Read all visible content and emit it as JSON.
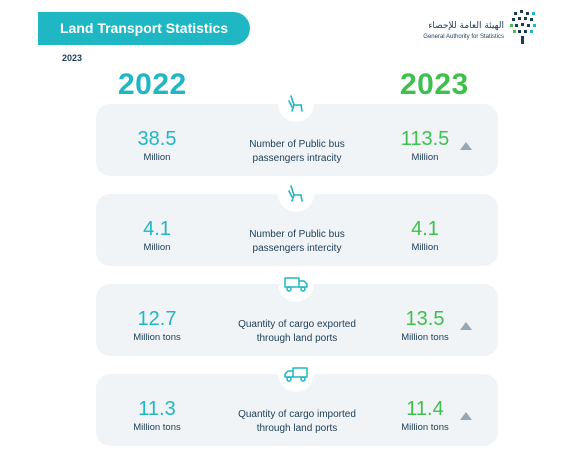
{
  "header": {
    "title": "Land Transport Statistics",
    "year": "2023",
    "logo_arabic": "الهيئة العامة للإحصاء",
    "logo_english": "General Authority for Statistics"
  },
  "columns": {
    "left_year": "2022",
    "right_year": "2023"
  },
  "colors": {
    "teal": "#1fb7c4",
    "green": "#3fbf4d",
    "navy": "#1a3d57",
    "card_bg": "#f1f4f6"
  },
  "cards": [
    {
      "icon": "bus-seat-icon",
      "label_line1": "Number of Public bus",
      "label_line2": "passengers intracity",
      "value_2022": "38.5",
      "unit_2022": "Million",
      "value_2023": "113.5",
      "unit_2023": "Million",
      "trend": "up"
    },
    {
      "icon": "bus-seat-icon",
      "label_line1": "Number of Public bus",
      "label_line2": "passengers intercity",
      "value_2022": "4.1",
      "unit_2022": "Million",
      "value_2023": "4.1",
      "unit_2023": "Million",
      "trend": "none"
    },
    {
      "icon": "truck-icon",
      "label_line1": "Quantity of cargo exported",
      "label_line2": "through land ports",
      "value_2022": "12.7",
      "unit_2022": "Million tons",
      "value_2023": "13.5",
      "unit_2023": "Million tons",
      "trend": "up"
    },
    {
      "icon": "truck-icon",
      "label_line1": "Quantity of cargo imported",
      "label_line2": "through land ports",
      "value_2022": "11.3",
      "unit_2022": "Million tons",
      "value_2023": "11.4",
      "unit_2023": "Million tons",
      "trend": "up"
    }
  ]
}
